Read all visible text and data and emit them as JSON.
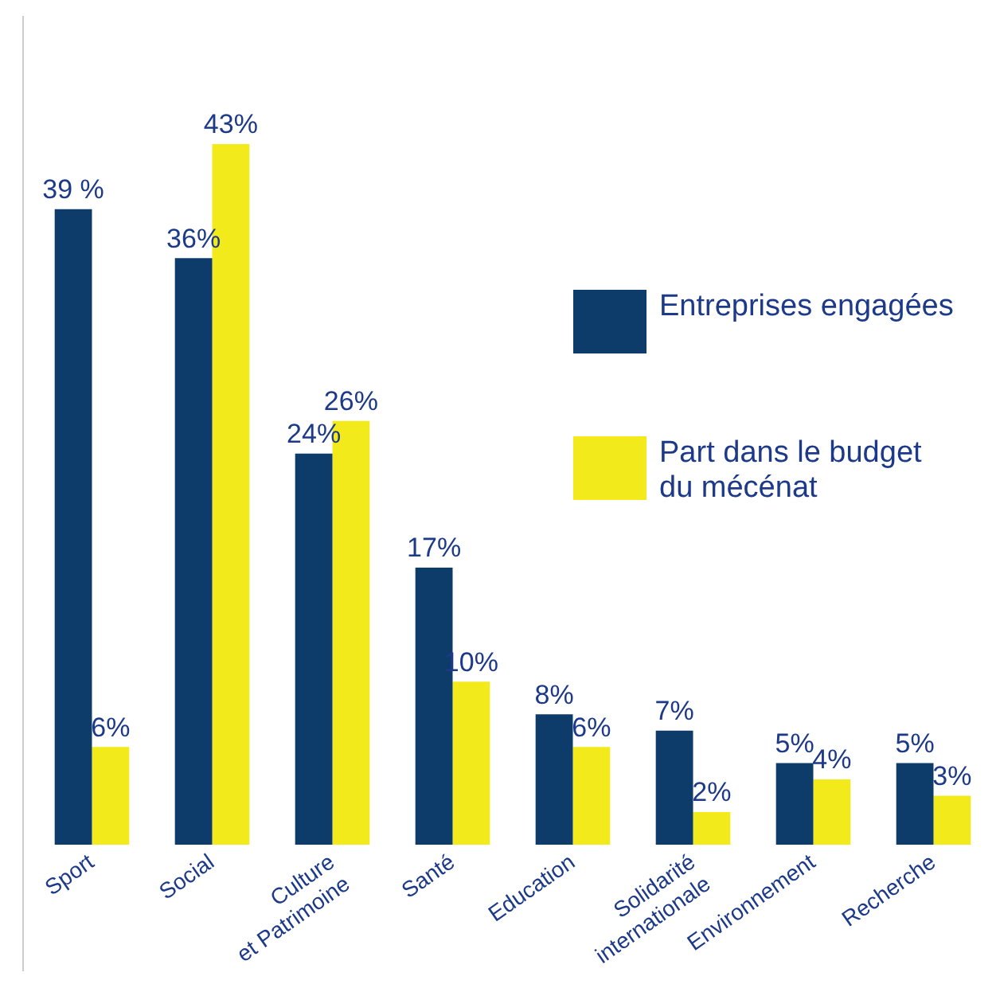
{
  "chart_data": {
    "type": "bar",
    "categories": [
      "Sport",
      "Social",
      "Culture\net Patrimoine",
      "Santé",
      "Education",
      "Solidarité\ninternationale",
      "Environnement",
      "Recherche"
    ],
    "series": [
      {
        "name": "Entreprises engagées",
        "color": "#0e3c6a",
        "values": [
          39,
          36,
          24,
          17,
          8,
          7,
          5,
          5
        ],
        "value_labels": [
          "39 %",
          "36%",
          "24%",
          "17%",
          "8%",
          "7%",
          "5%",
          "5%"
        ]
      },
      {
        "name": "Part dans le budget\ndu mécénat",
        "color": "#f3ea1c",
        "values": [
          6,
          43,
          26,
          10,
          6,
          2,
          4,
          3
        ],
        "value_labels": [
          "6%",
          "43%",
          "26%",
          "10%",
          "6%",
          "2%",
          "4%",
          "3%"
        ]
      }
    ],
    "legend": "right",
    "grid": false
  }
}
